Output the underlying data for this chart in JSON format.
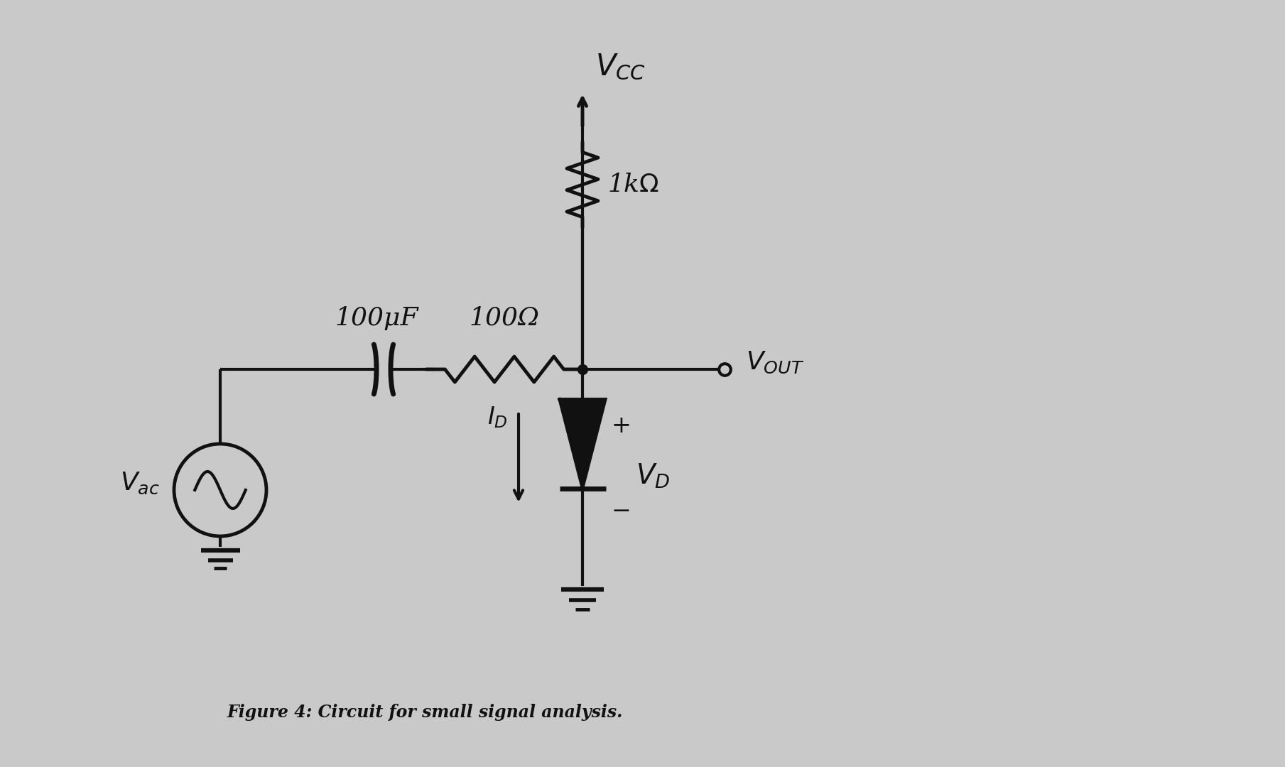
{
  "bg_color": "#c9c9c9",
  "line_color": "#111111",
  "line_width": 3.0,
  "fig_width": 18.09,
  "fig_height": 10.8,
  "caption": "Figure 4: Circuit for small signal analysis.",
  "caption_fontsize": 17
}
